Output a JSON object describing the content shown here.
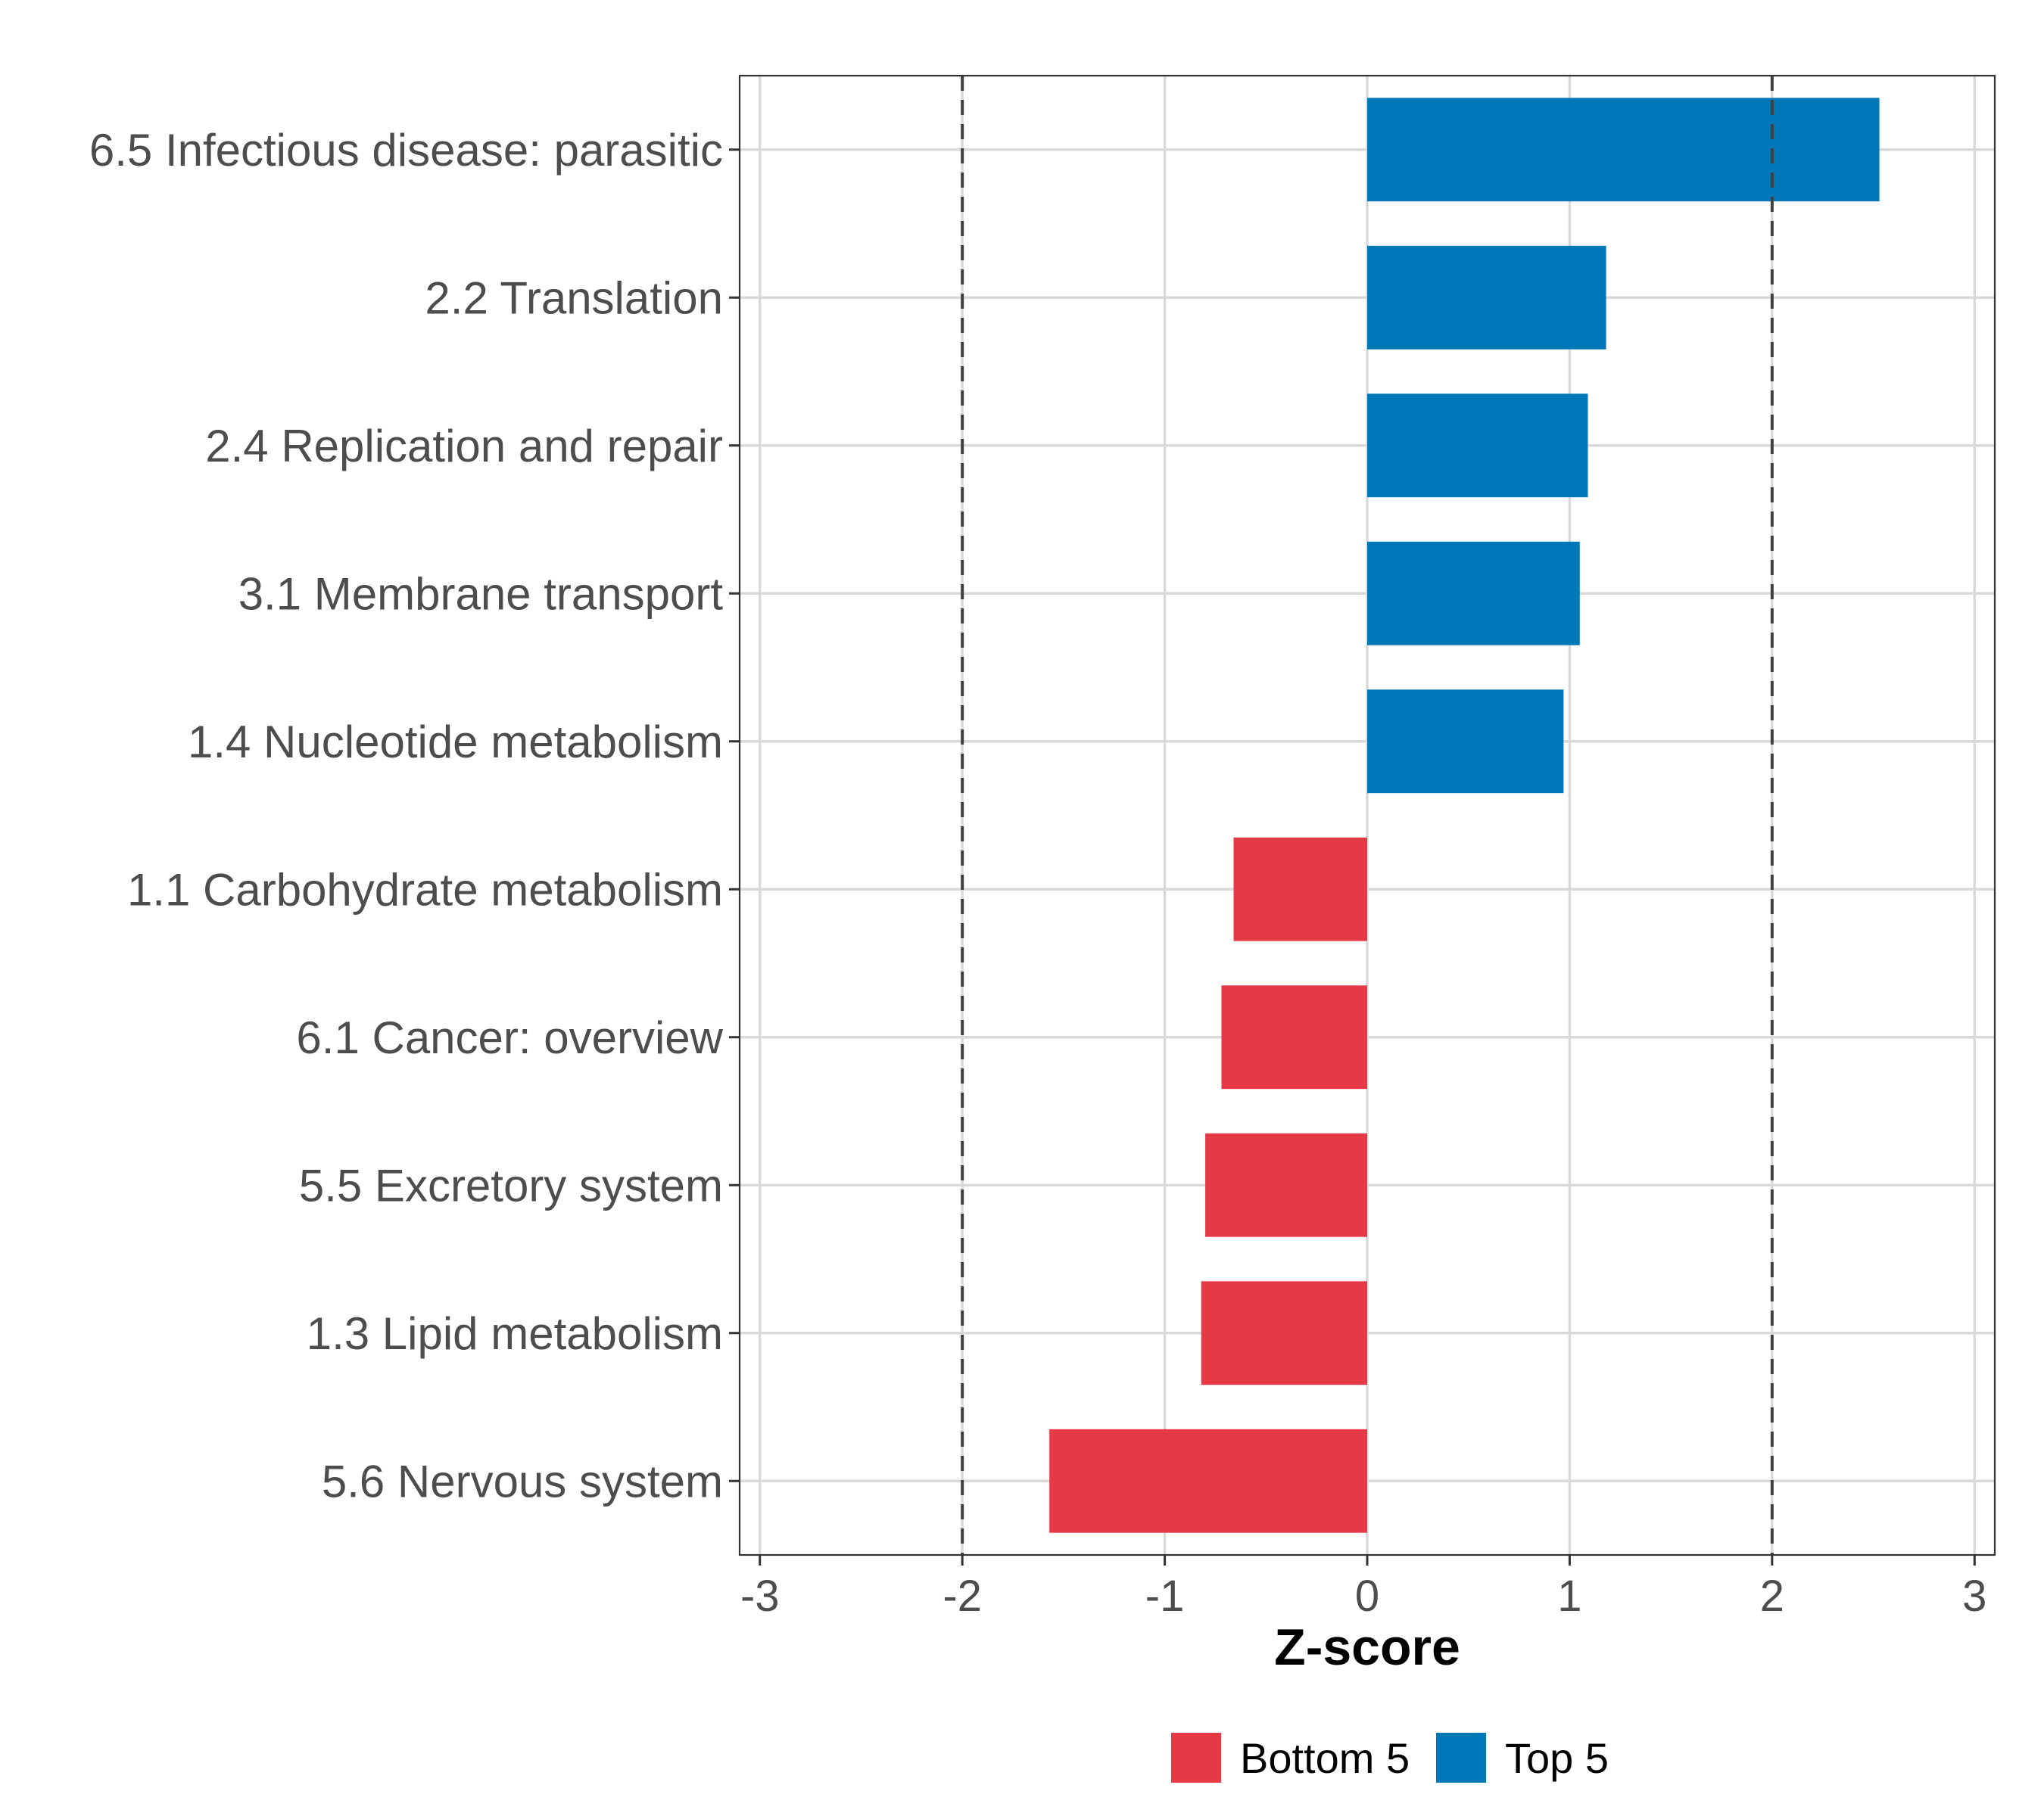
{
  "chart_data": {
    "type": "bar",
    "orientation": "horizontal",
    "title": "",
    "xlabel": "Z-score",
    "ylabel": "",
    "xlim": [
      -3.1,
      3.1
    ],
    "x_ticks": [
      -3,
      -2,
      -1,
      0,
      1,
      2,
      3
    ],
    "x_tick_labels": [
      "-3",
      "-2",
      "-1",
      "0",
      "1",
      "2",
      "3"
    ],
    "reference_lines": [
      -2,
      2
    ],
    "grid": true,
    "legend_position": "bottom",
    "categories": [
      "6.5 Infectious disease: parasitic",
      "2.2 Translation",
      "2.4 Replication and repair",
      "3.1 Membrane transport",
      "1.4 Nucleotide metabolism",
      "1.1 Carbohydrate metabolism",
      "6.1 Cancer: overview",
      "5.5 Excretory system",
      "1.3 Lipid metabolism",
      "5.6 Nervous system"
    ],
    "values": [
      2.53,
      1.18,
      1.09,
      1.05,
      0.97,
      -0.66,
      -0.72,
      -0.8,
      -0.82,
      -1.57
    ],
    "groups": [
      "Top 5",
      "Top 5",
      "Top 5",
      "Top 5",
      "Top 5",
      "Bottom 5",
      "Bottom 5",
      "Bottom 5",
      "Bottom 5",
      "Bottom 5"
    ],
    "legend": [
      {
        "name": "Bottom 5",
        "color": "#E63946"
      },
      {
        "name": "Top 5",
        "color": "#0077B6"
      }
    ]
  }
}
